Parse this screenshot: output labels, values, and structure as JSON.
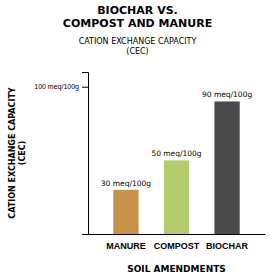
{
  "chart_data": {
    "type": "bar",
    "title": [
      "BIOCHAR VS.",
      "COMPOST AND MANURE"
    ],
    "subtitle": [
      "CATION EXCHANGE CAPACITY",
      "(CEC)"
    ],
    "xlabel": "SOIL AMENDMENTS",
    "ylabel": [
      "CATION EXCHANGE CAPACITY",
      "(CEC)"
    ],
    "categories": [
      "MANURE",
      "COMPOST",
      "BIOCHAR"
    ],
    "values": [
      30,
      50,
      90
    ],
    "value_labels": [
      "30 meq/100g",
      "50 meq/100g",
      "90 meq/100g"
    ],
    "data_labels": true,
    "colors": [
      "#c8924a",
      "#b5cc6e",
      "#4a4a4a"
    ],
    "ylim": [
      0,
      110
    ],
    "yticks": [
      {
        "value": 100,
        "label": "100 meq/100g"
      }
    ],
    "grid": false
  }
}
